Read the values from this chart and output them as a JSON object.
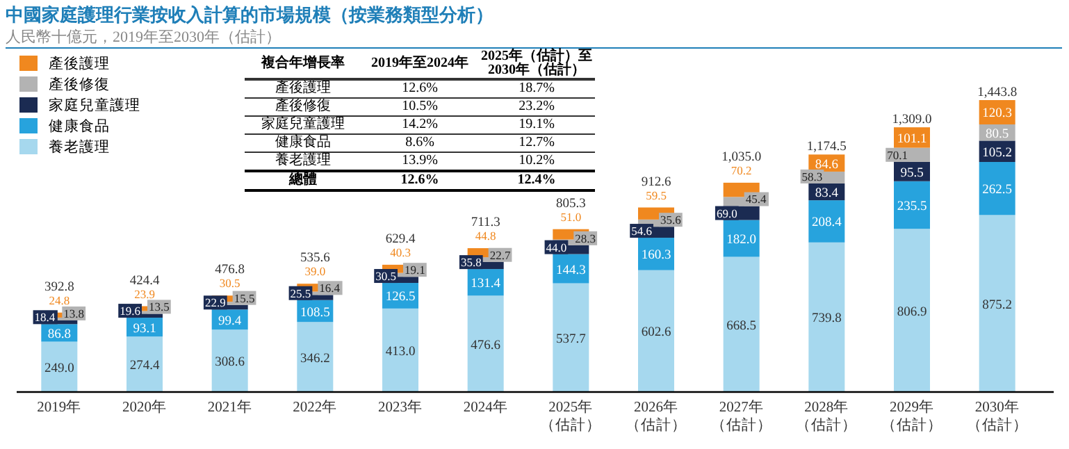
{
  "chart_data": {
    "type": "bar",
    "stacked": true,
    "legend": "top left",
    "title": "中國家庭護理行業按收入計算的市場規模（按業務類型分析）",
    "subtitle": "人民幣十億元，2019年至2030年（估計）",
    "categories": [
      "2019年",
      "2020年",
      "2021年",
      "2022年",
      "2023年",
      "2024年",
      "2025年（估計）",
      "2026年（估計）",
      "2027年（估計）",
      "2028年（估計）",
      "2029年（估計）",
      "2030年（估計）"
    ],
    "series": [
      {
        "name": "養老護理",
        "color": "#a6d8ee",
        "values": [
          249.0,
          274.4,
          308.6,
          346.2,
          413.0,
          476.6,
          537.7,
          602.6,
          668.5,
          739.8,
          806.9,
          875.2
        ],
        "value_labels": [
          "249.0",
          "274.4",
          "308.6",
          "346.2",
          "413.0",
          "476.6",
          "537.7",
          "602.6",
          "668.5",
          "739.8",
          "806.9",
          "875.2"
        ]
      },
      {
        "name": "健康食品",
        "color": "#27a3dd",
        "values": [
          86.8,
          93.1,
          99.4,
          108.5,
          126.5,
          131.4,
          144.3,
          160.3,
          182.0,
          208.4,
          235.5,
          262.5
        ],
        "value_labels": [
          "86.8",
          "93.1",
          "99.4",
          "108.5",
          "126.5",
          "131.4",
          "144.3",
          "160.3",
          "182.0",
          "208.4",
          "235.5",
          "262.5"
        ]
      },
      {
        "name": "家庭兒童護理",
        "color": "#1b2b52",
        "values": [
          18.4,
          19.6,
          22.9,
          25.5,
          30.5,
          35.8,
          44.0,
          54.6,
          69.0,
          83.4,
          95.5,
          105.2
        ],
        "value_labels": [
          "18.4",
          "19.6",
          "22.9",
          "25.5",
          "30.5",
          "35.8",
          "44.0",
          "54.6",
          "69.0",
          "83.4",
          "95.5",
          "105.2"
        ]
      },
      {
        "name": "產後修復",
        "color": "#b3b3b3",
        "values": [
          13.8,
          13.5,
          15.5,
          16.4,
          19.1,
          22.7,
          28.3,
          35.6,
          45.4,
          58.3,
          70.1,
          80.5
        ],
        "value_labels": [
          "13.8",
          "13.5",
          "15.5",
          "16.4",
          "19.1",
          "22.7",
          "28.3",
          "35.6",
          "45.4",
          "58.3",
          "70.1",
          "80.5"
        ]
      },
      {
        "name": "產後護理",
        "color": "#f0881f",
        "values": [
          24.8,
          23.9,
          30.5,
          39.0,
          40.3,
          44.8,
          51.0,
          59.5,
          70.2,
          84.6,
          101.1,
          120.3
        ],
        "value_labels": [
          "24.8",
          "23.9",
          "30.5",
          "39.0",
          "40.3",
          "44.8",
          "51.0",
          "59.5",
          "70.2",
          "84.6",
          "101.1",
          "120.3"
        ]
      }
    ],
    "totals": [
      "392.8",
      "424.4",
      "476.8",
      "535.6",
      "629.4",
      "711.3",
      "805.3",
      "912.6",
      "1,035.0",
      "1,174.5",
      "1,309.0",
      "1,443.8"
    ],
    "annotations": [
      "複合年增長率",
      "2019年至2024年",
      "2025年（估計）至2030年（估計）",
      "產後護理",
      "12.6%",
      "18.7%",
      "產後修復",
      "10.5%",
      "23.2%",
      "家庭兒童護理",
      "14.2%",
      "19.1%",
      "健康食品",
      "8.6%",
      "12.7%",
      "養老護理",
      "13.9%",
      "10.2%",
      "總體",
      "12.6%",
      "12.4%"
    ]
  }
}
